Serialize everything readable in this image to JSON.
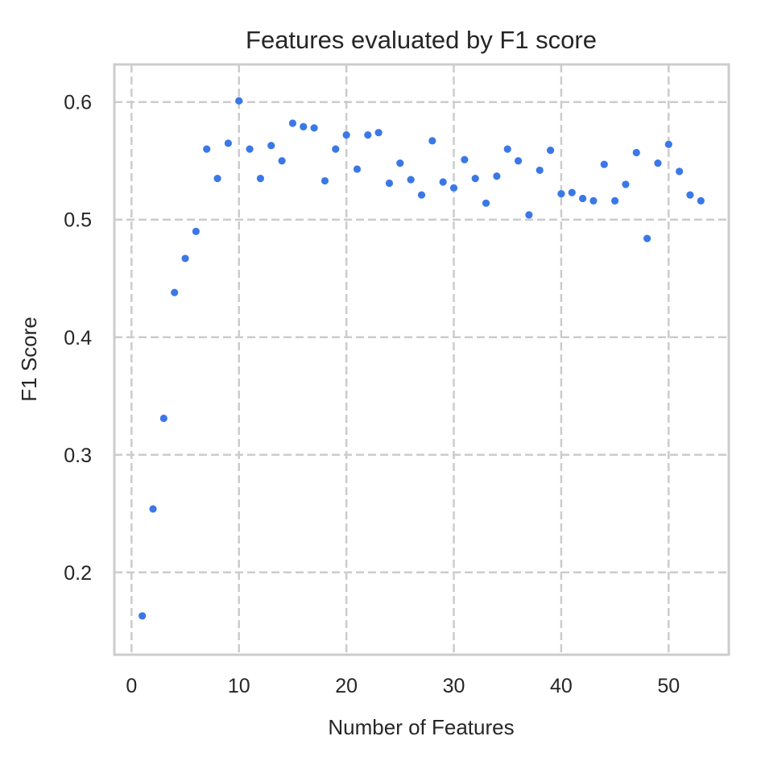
{
  "chart_data": {
    "type": "scatter",
    "title": "Features evaluated by F1 score",
    "xlabel": "Number of Features",
    "ylabel": "F1 Score",
    "xlim": [
      -1.6,
      55.6
    ],
    "ylim": [
      0.13,
      0.632
    ],
    "x_ticks": [
      0,
      10,
      20,
      30,
      40,
      50
    ],
    "y_ticks": [
      0.2,
      0.3,
      0.4,
      0.5,
      0.6
    ],
    "grid": true,
    "marker_color": "#3b78e7",
    "series": [
      {
        "x": [
          1,
          2,
          3,
          4,
          5,
          6,
          7,
          8,
          9,
          10,
          11,
          12,
          13,
          14,
          15,
          16,
          17,
          18,
          19,
          20,
          21,
          22,
          23,
          24,
          25,
          26,
          27,
          28,
          29,
          30,
          31,
          32,
          33,
          34,
          35,
          36,
          37,
          38,
          39,
          40,
          41,
          42,
          43,
          44,
          45,
          46,
          47,
          48,
          49,
          50,
          51,
          52,
          53
        ],
        "y": [
          0.163,
          0.254,
          0.331,
          0.438,
          0.467,
          0.49,
          0.56,
          0.535,
          0.565,
          0.601,
          0.56,
          0.535,
          0.563,
          0.55,
          0.582,
          0.579,
          0.578,
          0.533,
          0.56,
          0.572,
          0.543,
          0.572,
          0.574,
          0.531,
          0.548,
          0.534,
          0.521,
          0.567,
          0.532,
          0.527,
          0.551,
          0.535,
          0.514,
          0.537,
          0.56,
          0.55,
          0.504,
          0.542,
          0.559,
          0.522,
          0.523,
          0.518,
          0.516,
          0.547,
          0.516,
          0.53,
          0.557,
          0.484,
          0.548,
          0.564,
          0.541,
          0.521,
          0.516
        ]
      }
    ]
  }
}
